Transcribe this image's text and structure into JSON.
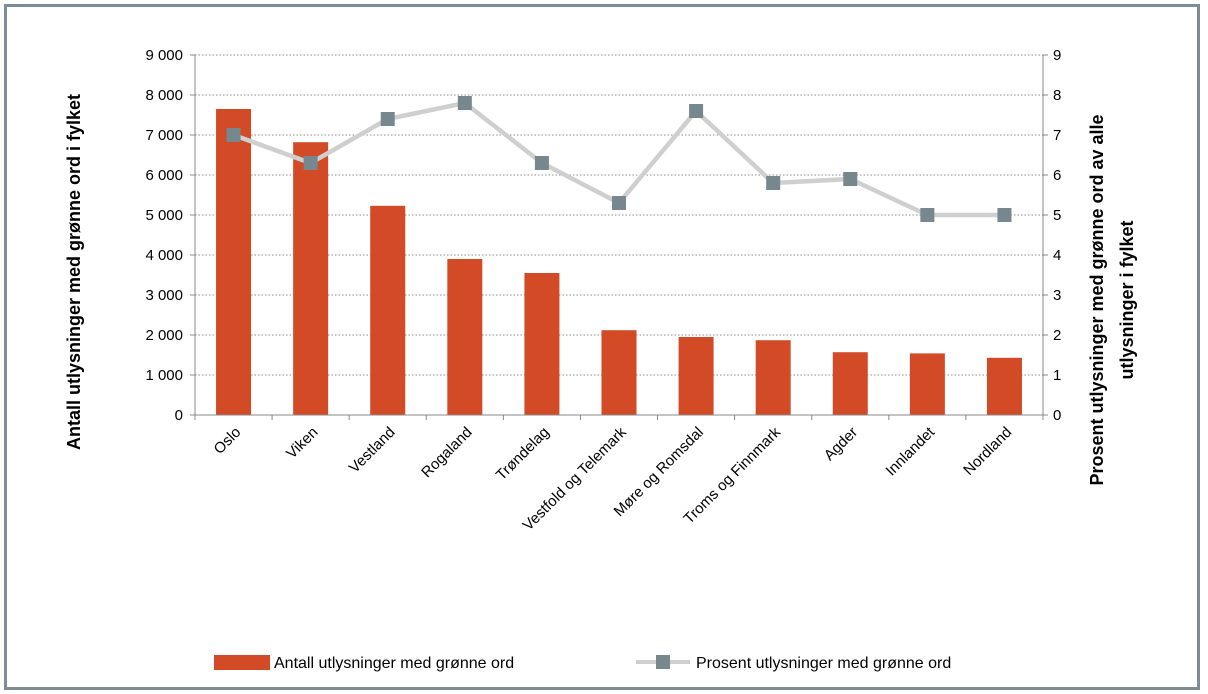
{
  "chart_data": {
    "type": "bar",
    "categories": [
      "Oslo",
      "Viken",
      "Vestland",
      "Rogaland",
      "Trøndelag",
      "Vestfold og Telemark",
      "Møre og Romsdal",
      "Troms og Finnmark",
      "Agder",
      "Innlandet",
      "Nordland"
    ],
    "series": [
      {
        "name": "Antall utlysninger med grønne ord",
        "type": "bar",
        "axis": "left",
        "color": "#d34a26",
        "values": [
          7650,
          6820,
          5230,
          3900,
          3550,
          2120,
          1950,
          1870,
          1570,
          1540,
          1430
        ]
      },
      {
        "name": "Prosent utlysninger med grønne ord",
        "type": "line",
        "axis": "right",
        "line_color": "#cfcfcf",
        "marker_color": "#76878d",
        "values": [
          7.0,
          6.3,
          7.4,
          7.8,
          6.3,
          5.3,
          7.6,
          5.8,
          5.9,
          5.0,
          5.0
        ]
      }
    ],
    "y_left": {
      "label": "Antall utlysninger med grønne ord i fylket",
      "lim": [
        0,
        9000
      ],
      "ticks": [
        0,
        1000,
        2000,
        3000,
        4000,
        5000,
        6000,
        7000,
        8000,
        9000
      ],
      "tick_labels": [
        "0",
        "1 000",
        "2 000",
        "3 000",
        "4 000",
        "5 000",
        "6 000",
        "7 000",
        "8 000",
        "9 000"
      ]
    },
    "y_right": {
      "label_lines": [
        "Prosent utlysninger med grønne ord av alle",
        "utlysninger i fylket"
      ],
      "lim": [
        0,
        9
      ],
      "ticks": [
        0,
        1,
        2,
        3,
        4,
        5,
        6,
        7,
        8,
        9
      ],
      "tick_labels": [
        "0",
        "1",
        "2",
        "3",
        "4",
        "5",
        "6",
        "7",
        "8",
        "9"
      ]
    },
    "grid": "dotted horizontal",
    "legend_position": "bottom",
    "border_color": "#7f8c96"
  }
}
